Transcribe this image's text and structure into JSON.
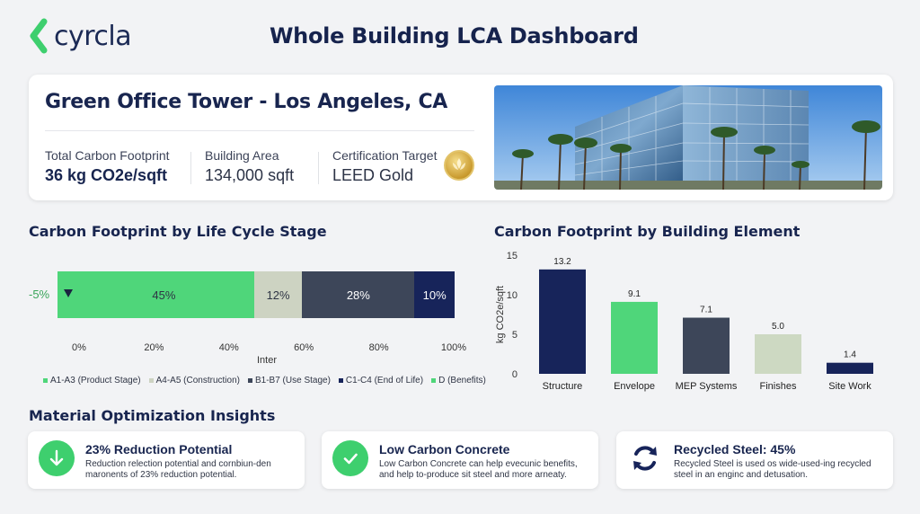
{
  "brand": {
    "name": "cyrcla",
    "accent": "#3ecf6e"
  },
  "page_title": "Whole Building LCA Dashboard",
  "project": {
    "title": "Green Office Tower - Los Angeles, CA",
    "stats": [
      {
        "label": "Total Carbon Footprint",
        "value": "36 kg CO2e/sqft"
      },
      {
        "label": "Building Area",
        "value": "134,000 sqft"
      },
      {
        "label": "Certification Target",
        "value": "LEED Gold"
      }
    ],
    "badge_icon": "leed-gold-badge-icon",
    "photo": "office-tower-photo"
  },
  "lifecycle": {
    "section_title": "Carbon Footprint by Life Cycle Stage",
    "negative_label": "-5%",
    "x_label": "Inter"
  },
  "element": {
    "section_title": "Carbon Footprint by Building Element"
  },
  "chart_data": [
    {
      "type": "bar",
      "orientation": "horizontal-stacked",
      "title": "Carbon Footprint by Life Cycle Stage",
      "xlabel": "Inter",
      "xlim": [
        0,
        100
      ],
      "ticks": [
        "0%",
        "20%",
        "40%",
        "60%",
        "80%",
        "100%"
      ],
      "series": [
        {
          "name": "A1-A3 (Product Stage)",
          "value": 45,
          "label": "45%",
          "color": "#4fd67a"
        },
        {
          "name": "A4-A5 (Construction)",
          "value": 12,
          "label": "12%",
          "color": "#cdd3c2"
        },
        {
          "name": "B1-B7 (Use Stage)",
          "value": 28,
          "label": "28%",
          "color": "#3d4659"
        },
        {
          "name": "C1-C4 (End of Life)",
          "value": 10,
          "label": "10%",
          "color": "#17245a"
        },
        {
          "name": "D (Benefits)",
          "value": -5,
          "label": "-5%",
          "color": "#4fd67a"
        }
      ],
      "legend": [
        "A1-A3 (Product Stage)",
        "A4-A5 (Construction)",
        "B1-B7 (Use Stage)",
        "C1-C4 (End of Life)",
        "D (Benefits)"
      ],
      "legend_position": "bottom"
    },
    {
      "type": "bar",
      "title": "Carbon Footprint by Building Element",
      "categories": [
        "Structure",
        "Envelope",
        "MEP Systems",
        "Finishes",
        "Site Work"
      ],
      "values": [
        13.2,
        9.1,
        7.1,
        5.0,
        1.4
      ],
      "value_labels": [
        "13.2",
        "9.1",
        "7.1",
        "5.0",
        "1.4"
      ],
      "colors": [
        "#17245a",
        "#4fd67a",
        "#3d4659",
        "#cdd9c2",
        "#17245a"
      ],
      "ylabel": "kg CO2e/sqft",
      "ylim": [
        0,
        15
      ],
      "yticks": [
        "15",
        "10",
        "5",
        "0"
      ]
    }
  ],
  "insights": {
    "section_title": "Material Optimization Insights",
    "cards": [
      {
        "icon": "arrow-down-icon",
        "title": "23% Reduction Potential",
        "text": "Reduction relection potential and cornbiun-den maronents of 23% reduction potential."
      },
      {
        "icon": "checkmark-icon",
        "title": "Low Carbon Concrete",
        "text": "Low Carbon Concrete can help evecunic benefits, and help to-produce sit steel and more arneaty."
      },
      {
        "icon": "recycle-arrows-icon",
        "title": "Recycled Steel: 45%",
        "text": "Recycled Steel is used os wide-used-ing recycled steel in an enginc and detusation."
      }
    ]
  }
}
